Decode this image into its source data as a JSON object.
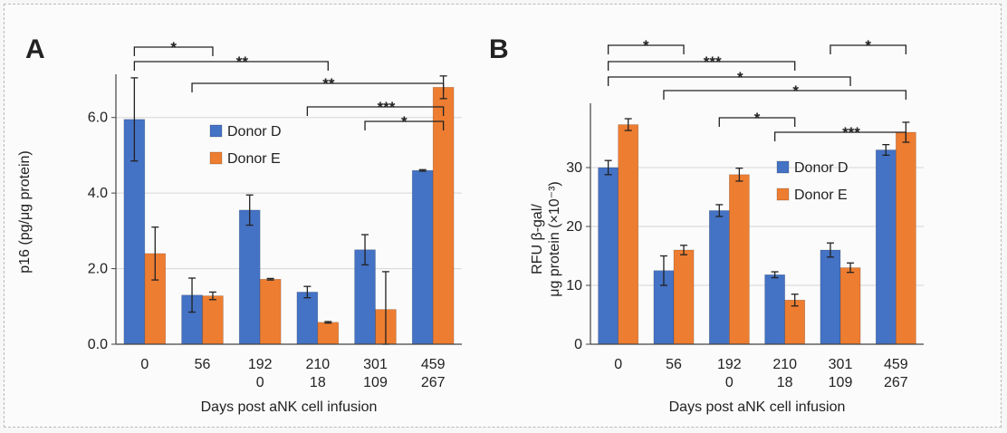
{
  "chart_data": [
    {
      "panel_label": "A",
      "type": "bar",
      "categories": [
        [
          "0"
        ],
        [
          "56"
        ],
        [
          "192",
          "0"
        ],
        [
          "210",
          "18"
        ],
        [
          "301",
          "109"
        ],
        [
          "459",
          "267"
        ]
      ],
      "xlabel": "Days post aNK cell infusion",
      "ylabel": "p16 (pg/μg protein)",
      "ylim": [
        0,
        7.0
      ],
      "yticks": [
        "0.0",
        "2.0",
        "4.0",
        "6.0"
      ],
      "ytick_values": [
        0,
        2,
        4,
        6
      ],
      "grid": true,
      "legend_position": "upper-center",
      "series": [
        {
          "name": "Donor D",
          "color": "#4472c4",
          "values": [
            5.95,
            1.3,
            3.55,
            1.38,
            2.5,
            4.6
          ],
          "errors": [
            1.1,
            0.45,
            0.4,
            0.15,
            0.4,
            0.02
          ]
        },
        {
          "name": "Donor E",
          "color": "#ed7d31",
          "values": [
            2.4,
            1.28,
            1.72,
            0.58,
            0.92,
            6.8
          ],
          "errors": [
            0.7,
            0.1,
            0.02,
            0.02,
            1.0,
            0.3
          ]
        }
      ],
      "significance": [
        {
          "label": "*",
          "from": 0,
          "to": 1
        },
        {
          "label": "**",
          "from": 0,
          "to": 3
        },
        {
          "label": "**",
          "from": 1,
          "to": 5
        },
        {
          "label": "***",
          "from": 3,
          "to": 5
        },
        {
          "label": "*",
          "from": 4,
          "to": 5
        }
      ]
    },
    {
      "panel_label": "B",
      "type": "bar",
      "categories": [
        [
          "0"
        ],
        [
          "56"
        ],
        [
          "192",
          "0"
        ],
        [
          "210",
          "18"
        ],
        [
          "301",
          "109"
        ],
        [
          "459",
          "267"
        ]
      ],
      "xlabel": "Days post aNK cell infusion",
      "ylabel_lines": [
        "RFU β-gal/",
        "μg protein (×10⁻³)"
      ],
      "ylim": [
        0,
        40
      ],
      "yticks": [
        "0",
        "10",
        "20",
        "30"
      ],
      "ytick_values": [
        0,
        10,
        20,
        30
      ],
      "grid": true,
      "legend_position": "center-right",
      "series": [
        {
          "name": "Donor D",
          "color": "#4472c4",
          "values": [
            30,
            12.5,
            22.7,
            11.8,
            16,
            33
          ],
          "errors": [
            1.2,
            2.5,
            1.0,
            0.5,
            1.2,
            0.9
          ]
        },
        {
          "name": "Donor E",
          "color": "#ed7d31",
          "values": [
            37.3,
            16,
            28.8,
            7.5,
            13,
            36
          ],
          "errors": [
            1.0,
            0.8,
            1.1,
            1.0,
            0.8,
            1.7
          ]
        }
      ],
      "significance": [
        {
          "label": "*",
          "from": 0,
          "to": 1
        },
        {
          "label": "***",
          "from": 0,
          "to": 3
        },
        {
          "label": "*",
          "from": 0,
          "to": 4
        },
        {
          "label": "*",
          "from": 1,
          "to": 5
        },
        {
          "label": "*",
          "from": 2,
          "to": 3
        },
        {
          "label": "***",
          "from": 3,
          "to": 5
        },
        {
          "label": "*",
          "from": 4,
          "to": 5
        }
      ]
    }
  ]
}
